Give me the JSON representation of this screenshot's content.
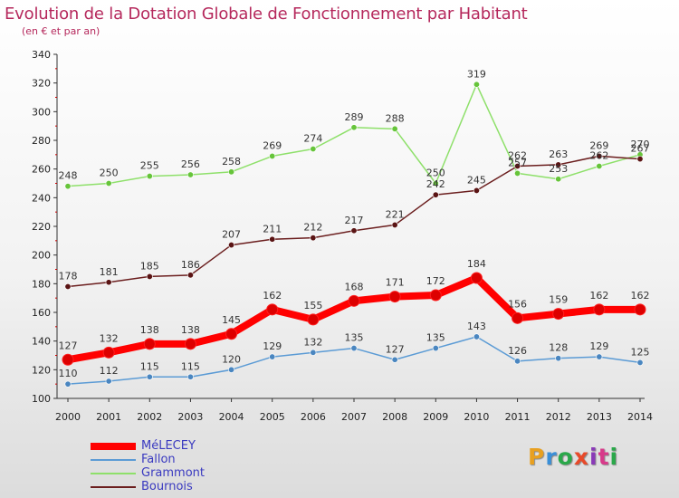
{
  "title": "Evolution de la Dotation Globale de Fonctionnement par Habitant",
  "subtitle": "(en € et par an)",
  "brand": {
    "text": "Proxiti",
    "colors": [
      "#e8a020",
      "#3a8fd8",
      "#2aa84a",
      "#e84a2a",
      "#8a3ab8",
      "#d83a8a",
      "#2aa84a"
    ]
  },
  "colors": {
    "title": "#b5285c",
    "axis": "#333333",
    "axis_ticks_red": "#cc0000",
    "legend_text": "#3a3ac0"
  },
  "chart_data": {
    "type": "line",
    "ylim": [
      100,
      340
    ],
    "yticks": [
      100,
      120,
      140,
      160,
      180,
      200,
      220,
      240,
      260,
      280,
      300,
      320,
      340
    ],
    "x": [
      "2000",
      "2001",
      "2002",
      "2003",
      "2004",
      "2005",
      "2006",
      "2007",
      "2008",
      "2009",
      "2010",
      "2011",
      "2012",
      "2013",
      "2014"
    ],
    "grid": false,
    "legend_position": "bottom-left",
    "series": [
      {
        "name": "MéLECEY",
        "color": "#ff0000",
        "marker": "#dd0000",
        "width": 8,
        "values": [
          127,
          132,
          138,
          138,
          145,
          162,
          155,
          168,
          171,
          172,
          184,
          156,
          159,
          162,
          162
        ]
      },
      {
        "name": "Fallon",
        "color": "#5b9bd5",
        "marker": "#4a86c0",
        "width": 1.5,
        "values": [
          110,
          112,
          115,
          115,
          120,
          129,
          132,
          135,
          127,
          135,
          143,
          126,
          128,
          129,
          125
        ]
      },
      {
        "name": "Grammont",
        "color": "#8ee06a",
        "marker": "#66c43a",
        "width": 1.5,
        "values": [
          248,
          250,
          255,
          256,
          258,
          269,
          274,
          289,
          288,
          250,
          319,
          257,
          253,
          262,
          270
        ]
      },
      {
        "name": "Bournois",
        "color": "#6b1e1e",
        "marker": "#5a1414",
        "width": 1.5,
        "values": [
          178,
          181,
          185,
          186,
          207,
          211,
          212,
          217,
          221,
          242,
          245,
          262,
          263,
          269,
          267
        ]
      }
    ]
  }
}
